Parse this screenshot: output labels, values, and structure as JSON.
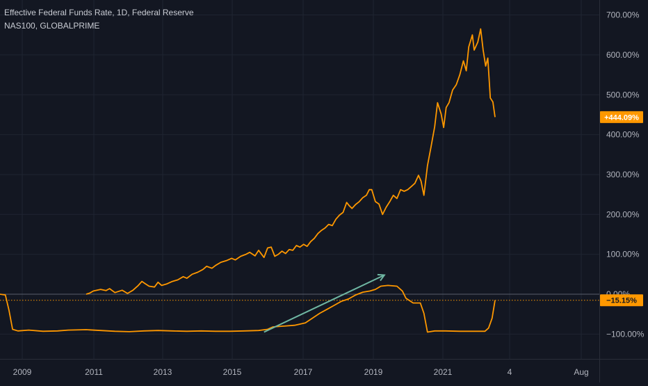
{
  "legend": {
    "line1": "Effective Federal Funds Rate, 1D, Federal Reserve",
    "line2": "NAS100, GLOBALPRIME"
  },
  "colors": {
    "background": "#131722",
    "grid": "#1f2431",
    "text": "#b2b5be",
    "line": "#ff9800",
    "arrow": "#6fb7a3",
    "axis_border": "#2a2e39",
    "zero_line": "#585e6c"
  },
  "chart_data": {
    "type": "line",
    "title": "Effective Federal Funds Rate, 1D, Federal Reserve",
    "subtitle": "NAS100, GLOBALPRIME",
    "xlabel": "",
    "ylabel": "",
    "x_ticks": [
      "2009",
      "2011",
      "2013",
      "2015",
      "2017",
      "2019",
      "2021",
      "4",
      "Aug"
    ],
    "y_ticks": [
      -100,
      0,
      100,
      200,
      300,
      400,
      500,
      600,
      700
    ],
    "y_tick_labels": [
      "−100.00%",
      "0.00%",
      "100.00%",
      "200.00%",
      "300.00%",
      "400.00%",
      "500.00%",
      "600.00%",
      "700.00%"
    ],
    "ylim": [
      -160,
      760
    ],
    "xlim": [
      2008.4,
      2023.2
    ],
    "grid": true,
    "y_scale": "percent",
    "last_value_labels": [
      {
        "series": "NAS100, GLOBALPRIME",
        "value": 444.09,
        "label": "+444.09%"
      },
      {
        "series": "Effective Federal Funds Rate",
        "value": -15.15,
        "label": "−15.15%"
      }
    ],
    "annotations": [
      {
        "type": "arrow",
        "from": [
          2015.75,
          -95
        ],
        "to": [
          2019.1,
          48
        ]
      }
    ],
    "series": [
      {
        "name": "NAS100, GLOBALPRIME",
        "points": [
          [
            2010.8,
            0
          ],
          [
            2010.9,
            3
          ],
          [
            2011.0,
            8
          ],
          [
            2011.2,
            12
          ],
          [
            2011.35,
            9
          ],
          [
            2011.45,
            14
          ],
          [
            2011.6,
            4
          ],
          [
            2011.8,
            10
          ],
          [
            2011.95,
            2
          ],
          [
            2012.1,
            10
          ],
          [
            2012.25,
            22
          ],
          [
            2012.35,
            32
          ],
          [
            2012.45,
            26
          ],
          [
            2012.55,
            20
          ],
          [
            2012.7,
            18
          ],
          [
            2012.8,
            30
          ],
          [
            2012.9,
            22
          ],
          [
            2013.05,
            26
          ],
          [
            2013.2,
            32
          ],
          [
            2013.35,
            36
          ],
          [
            2013.5,
            44
          ],
          [
            2013.6,
            40
          ],
          [
            2013.75,
            50
          ],
          [
            2013.9,
            55
          ],
          [
            2014.05,
            62
          ],
          [
            2014.15,
            70
          ],
          [
            2014.3,
            65
          ],
          [
            2014.4,
            72
          ],
          [
            2014.55,
            80
          ],
          [
            2014.7,
            84
          ],
          [
            2014.85,
            90
          ],
          [
            2014.95,
            86
          ],
          [
            2015.1,
            95
          ],
          [
            2015.25,
            100
          ],
          [
            2015.35,
            105
          ],
          [
            2015.5,
            96
          ],
          [
            2015.6,
            110
          ],
          [
            2015.75,
            92
          ],
          [
            2015.85,
            116
          ],
          [
            2015.95,
            118
          ],
          [
            2016.05,
            95
          ],
          [
            2016.15,
            100
          ],
          [
            2016.25,
            108
          ],
          [
            2016.35,
            102
          ],
          [
            2016.45,
            112
          ],
          [
            2016.55,
            110
          ],
          [
            2016.65,
            122
          ],
          [
            2016.75,
            118
          ],
          [
            2016.85,
            125
          ],
          [
            2016.95,
            120
          ],
          [
            2017.05,
            132
          ],
          [
            2017.15,
            140
          ],
          [
            2017.25,
            152
          ],
          [
            2017.35,
            160
          ],
          [
            2017.45,
            166
          ],
          [
            2017.55,
            175
          ],
          [
            2017.65,
            172
          ],
          [
            2017.75,
            188
          ],
          [
            2017.85,
            198
          ],
          [
            2017.95,
            205
          ],
          [
            2018.05,
            230
          ],
          [
            2018.12,
            222
          ],
          [
            2018.2,
            215
          ],
          [
            2018.3,
            225
          ],
          [
            2018.4,
            232
          ],
          [
            2018.5,
            242
          ],
          [
            2018.6,
            248
          ],
          [
            2018.68,
            262
          ],
          [
            2018.75,
            262
          ],
          [
            2018.85,
            232
          ],
          [
            2018.95,
            226
          ],
          [
            2019.05,
            200
          ],
          [
            2019.15,
            218
          ],
          [
            2019.25,
            232
          ],
          [
            2019.35,
            248
          ],
          [
            2019.45,
            240
          ],
          [
            2019.55,
            262
          ],
          [
            2019.65,
            258
          ],
          [
            2019.75,
            262
          ],
          [
            2019.85,
            270
          ],
          [
            2019.95,
            278
          ],
          [
            2020.05,
            298
          ],
          [
            2020.12,
            284
          ],
          [
            2020.2,
            248
          ],
          [
            2020.3,
            322
          ],
          [
            2020.4,
            370
          ],
          [
            2020.5,
            420
          ],
          [
            2020.58,
            480
          ],
          [
            2020.68,
            452
          ],
          [
            2020.75,
            418
          ],
          [
            2020.82,
            468
          ],
          [
            2020.9,
            480
          ],
          [
            2021.0,
            512
          ],
          [
            2021.1,
            525
          ],
          [
            2021.2,
            550
          ],
          [
            2021.3,
            585
          ],
          [
            2021.38,
            560
          ],
          [
            2021.45,
            620
          ],
          [
            2021.55,
            650
          ],
          [
            2021.6,
            612
          ],
          [
            2021.7,
            632
          ],
          [
            2021.78,
            665
          ],
          [
            2021.85,
            612
          ],
          [
            2021.92,
            572
          ],
          [
            2021.98,
            592
          ],
          [
            2022.05,
            492
          ],
          [
            2022.12,
            482
          ],
          [
            2022.18,
            444
          ]
        ]
      },
      {
        "name": "Effective Federal Funds Rate",
        "points": [
          [
            2008.4,
            0
          ],
          [
            2008.55,
            -2
          ],
          [
            2008.65,
            -40
          ],
          [
            2008.75,
            -88
          ],
          [
            2008.9,
            -92
          ],
          [
            2009.2,
            -90
          ],
          [
            2009.6,
            -93
          ],
          [
            2010.0,
            -92
          ],
          [
            2010.3,
            -90
          ],
          [
            2010.8,
            -89
          ],
          [
            2011.2,
            -91
          ],
          [
            2011.6,
            -93
          ],
          [
            2012.0,
            -94
          ],
          [
            2012.4,
            -92
          ],
          [
            2012.8,
            -91
          ],
          [
            2013.2,
            -92
          ],
          [
            2013.6,
            -93
          ],
          [
            2014.0,
            -92
          ],
          [
            2014.4,
            -93
          ],
          [
            2014.8,
            -93
          ],
          [
            2015.2,
            -92
          ],
          [
            2015.6,
            -91
          ],
          [
            2015.85,
            -88
          ],
          [
            2016.0,
            -82
          ],
          [
            2016.3,
            -80
          ],
          [
            2016.6,
            -78
          ],
          [
            2016.9,
            -72
          ],
          [
            2017.1,
            -60
          ],
          [
            2017.3,
            -48
          ],
          [
            2017.5,
            -38
          ],
          [
            2017.7,
            -28
          ],
          [
            2017.9,
            -18
          ],
          [
            2018.1,
            -12
          ],
          [
            2018.3,
            -2
          ],
          [
            2018.5,
            5
          ],
          [
            2018.7,
            8
          ],
          [
            2018.85,
            12
          ],
          [
            2019.0,
            20
          ],
          [
            2019.2,
            22
          ],
          [
            2019.45,
            20
          ],
          [
            2019.6,
            8
          ],
          [
            2019.7,
            -10
          ],
          [
            2019.9,
            -22
          ],
          [
            2020.1,
            -22
          ],
          [
            2020.2,
            -48
          ],
          [
            2020.3,
            -95
          ],
          [
            2020.5,
            -92
          ],
          [
            2020.8,
            -92
          ],
          [
            2021.2,
            -93
          ],
          [
            2021.6,
            -93
          ],
          [
            2021.9,
            -93
          ],
          [
            2022.0,
            -85
          ],
          [
            2022.1,
            -60
          ],
          [
            2022.18,
            -15.15
          ]
        ]
      }
    ]
  }
}
